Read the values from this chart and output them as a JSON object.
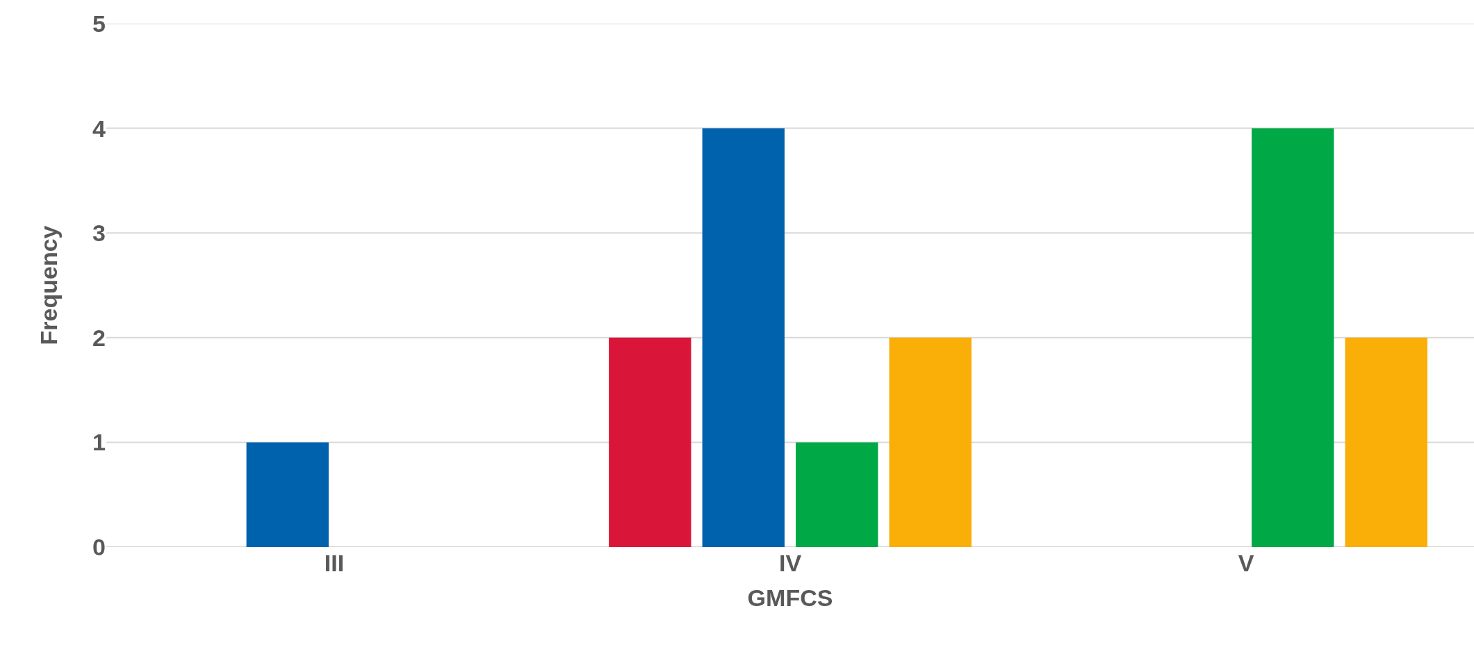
{
  "chart_data": {
    "type": "bar",
    "xlabel": "GMFCS",
    "ylabel": "Frequency",
    "categories": [
      "III",
      "IV",
      "V"
    ],
    "series": [
      {
        "color": "#d91539",
        "values": [
          0,
          2,
          0
        ]
      },
      {
        "color": "#0061ad",
        "values": [
          1,
          4,
          0
        ]
      },
      {
        "color": "#00a846",
        "values": [
          0,
          1,
          4
        ]
      },
      {
        "color": "#f9ae08",
        "values": [
          0,
          2,
          2
        ]
      }
    ],
    "ylim": [
      0,
      5
    ],
    "yticks": [
      0,
      1,
      2,
      3,
      4,
      5
    ],
    "grid": "y"
  }
}
